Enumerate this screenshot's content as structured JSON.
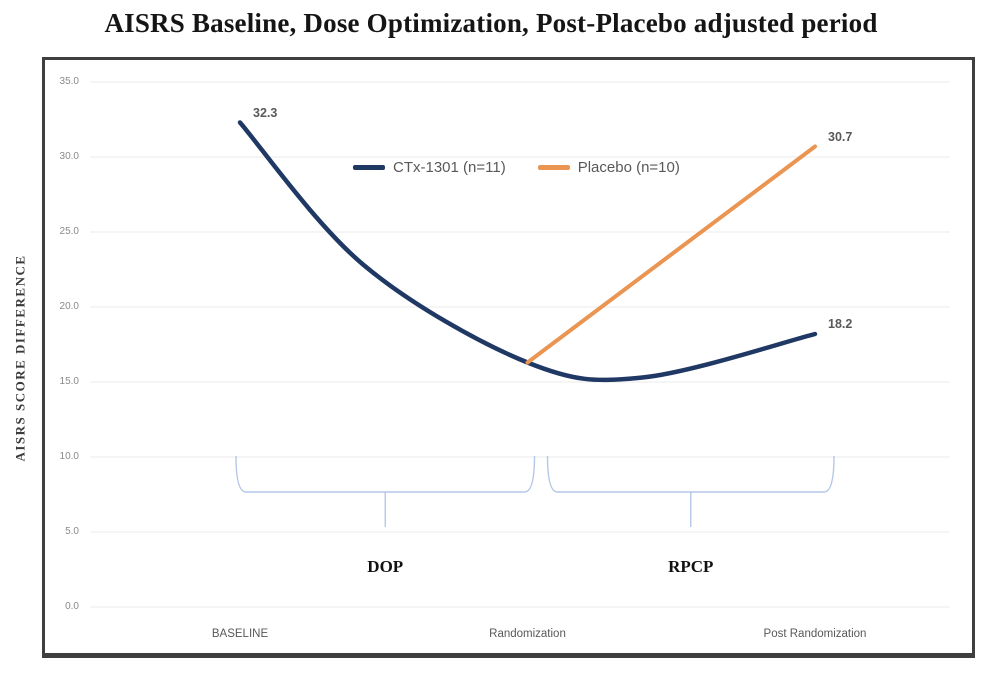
{
  "title": "AISRS Baseline, Dose Optimization, Post-Placebo adjusted period",
  "chart_data": {
    "type": "line",
    "title": "AISRS Baseline, Dose Optimization, Post-Placebo adjusted period",
    "xlabel": "",
    "ylabel": "AISRS SCORE DIFFERENCE",
    "ylim": [
      0,
      35
    ],
    "ytick_step": 5,
    "yticks": [
      "35.0",
      "30.0",
      "25.0",
      "20.0",
      "15.0",
      "10.0",
      "5.0",
      "0.0"
    ],
    "categories": [
      "BASELINE",
      "Randomization",
      "Post Randomization"
    ],
    "grid": true,
    "legend_position": "top-center",
    "series": [
      {
        "name": "CTx-1301 (n=11)",
        "color": "#203864",
        "smooth": true,
        "points": [
          {
            "x": 0,
            "y": 32.3
          },
          {
            "x": 0.43,
            "y": 22.8
          },
          {
            "x": 1,
            "y": 16.3
          },
          {
            "x": 1.4,
            "y": 15.3
          },
          {
            "x": 2,
            "y": 18.2
          }
        ],
        "point_labels": [
          {
            "x": 0,
            "y": 32.3,
            "text": "32.3"
          },
          {
            "x": 2,
            "y": 18.2,
            "text": "18.2"
          }
        ]
      },
      {
        "name": "Placebo (n=10)",
        "color": "#EA9552",
        "smooth": false,
        "points": [
          {
            "x": 1,
            "y": 16.3
          },
          {
            "x": 2,
            "y": 30.7
          }
        ],
        "point_labels": [
          {
            "x": 2,
            "y": 30.7,
            "text": "30.7"
          }
        ]
      }
    ],
    "annotations": [
      {
        "label": "DOP",
        "from": 0,
        "to": 1
      },
      {
        "label": "RPCP",
        "from": 1,
        "to": 2
      }
    ],
    "brace_color": "#b4c7e7",
    "gridline_color": "#ebebeb"
  }
}
